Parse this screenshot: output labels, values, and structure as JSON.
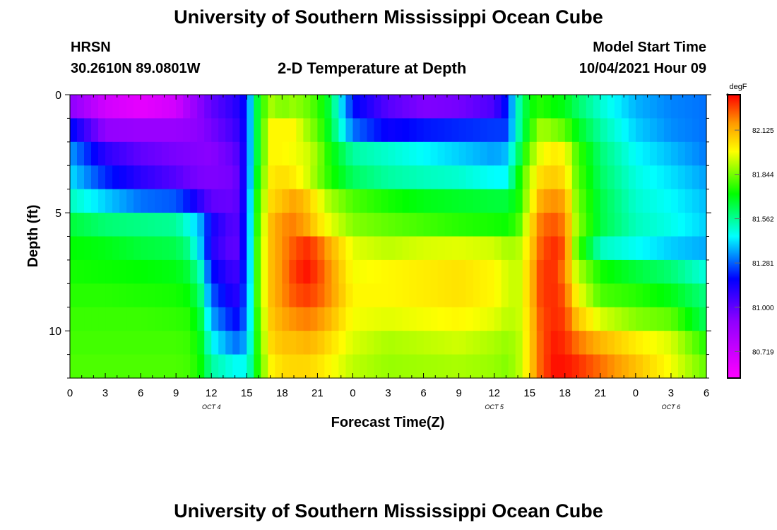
{
  "page": {
    "title_top": "University of Southern Mississippi Ocean Cube",
    "title_bottom": "University of Southern Mississippi Ocean Cube",
    "station": "HRSN",
    "location": "30.2610N  89.0801W",
    "plot_title": "2-D Temperature at Depth",
    "model_label": "Model Start Time",
    "model_time": "10/04/2021 Hour 09"
  },
  "chart_data": {
    "type": "heatmap",
    "title": "2-D Temperature at Depth",
    "xlabel": "Forecast Time(Z)",
    "ylabel": "Depth (ft)",
    "x_ticks": [
      "0",
      "3",
      "6",
      "9",
      "12",
      "15",
      "18",
      "21",
      "0",
      "3",
      "6",
      "9",
      "12",
      "15",
      "18",
      "21",
      "0",
      "3",
      "6"
    ],
    "x_range_hours": [
      0,
      54
    ],
    "date_labels": [
      {
        "label": "OCT 4",
        "hour": 12
      },
      {
        "label": "OCT 5",
        "hour": 36
      },
      {
        "label": "OCT 6",
        "hour": 51
      }
    ],
    "y_ticks": [
      0,
      5,
      10
    ],
    "y_range_ft": [
      0,
      12
    ],
    "colorbar": {
      "unit": "degF",
      "ticks": [
        "82.125",
        "81.844",
        "81.562",
        "81.281",
        "81.000",
        "80.719"
      ],
      "range": [
        80.55,
        82.35
      ]
    },
    "depth_levels_ft": [
      0.5,
      1.5,
      2.5,
      3.5,
      4.5,
      5.5,
      6.5,
      7.5,
      8.5,
      9.5,
      10.5,
      11.5
    ],
    "time_keys_hours": [
      0,
      3,
      6,
      9,
      10,
      11,
      12,
      14,
      15,
      15.5,
      16,
      17,
      18,
      19,
      20,
      21,
      22,
      24,
      27,
      30,
      33,
      36,
      37,
      38,
      39,
      40,
      41,
      42,
      43,
      45,
      48,
      51,
      54
    ],
    "values": [
      [
        80.92,
        80.7,
        80.63,
        80.7,
        80.82,
        80.92,
        81.0,
        81.1,
        81.2,
        81.5,
        81.7,
        81.9,
        81.85,
        81.88,
        81.84,
        81.78,
        81.66,
        81.2,
        81.02,
        80.94,
        80.96,
        81.04,
        81.2,
        81.52,
        81.72,
        81.76,
        81.72,
        81.7,
        81.62,
        81.5,
        81.37,
        81.32,
        81.3
      ],
      [
        81.2,
        80.9,
        80.88,
        80.88,
        80.9,
        80.92,
        80.96,
        81.06,
        81.2,
        81.5,
        81.7,
        82.0,
        82.0,
        82.0,
        81.9,
        81.82,
        81.68,
        81.3,
        81.16,
        81.2,
        81.22,
        81.24,
        81.24,
        81.52,
        81.75,
        81.9,
        81.86,
        81.82,
        81.7,
        81.55,
        81.4,
        81.33,
        81.3
      ],
      [
        81.35,
        81.1,
        81.0,
        80.95,
        80.94,
        80.93,
        80.92,
        81.0,
        81.2,
        81.5,
        81.7,
        82.0,
        82.0,
        81.98,
        81.95,
        81.88,
        81.74,
        81.55,
        81.5,
        81.45,
        81.4,
        81.35,
        81.38,
        81.6,
        81.85,
        81.98,
        82.02,
        82.0,
        81.8,
        81.6,
        81.45,
        81.38,
        81.31
      ],
      [
        81.42,
        81.22,
        81.1,
        81.02,
        80.98,
        80.95,
        80.94,
        80.96,
        81.22,
        81.5,
        81.75,
        82.02,
        82.05,
        82.02,
        81.96,
        81.86,
        81.76,
        81.62,
        81.55,
        81.52,
        81.5,
        81.45,
        81.45,
        81.7,
        81.92,
        82.06,
        82.08,
        82.05,
        81.82,
        81.62,
        81.48,
        81.42,
        81.35
      ],
      [
        81.52,
        81.4,
        81.3,
        81.27,
        81.2,
        81.1,
        81.0,
        80.98,
        81.22,
        81.55,
        81.8,
        82.05,
        82.1,
        82.15,
        82.1,
        82.0,
        81.9,
        81.8,
        81.74,
        81.7,
        81.68,
        81.66,
        81.66,
        81.72,
        81.95,
        82.15,
        82.18,
        82.15,
        81.85,
        81.65,
        81.5,
        81.45,
        81.38
      ],
      [
        81.66,
        81.6,
        81.58,
        81.56,
        81.48,
        81.38,
        81.15,
        81.0,
        81.24,
        81.55,
        81.82,
        82.1,
        82.18,
        82.2,
        82.15,
        82.05,
        81.97,
        81.86,
        81.82,
        81.79,
        81.76,
        81.74,
        81.73,
        81.78,
        82.02,
        82.22,
        82.25,
        82.2,
        81.88,
        81.65,
        81.52,
        81.47,
        81.4
      ],
      [
        81.72,
        81.7,
        81.66,
        81.64,
        81.58,
        81.42,
        81.12,
        80.98,
        81.25,
        81.55,
        81.85,
        82.1,
        82.18,
        82.25,
        82.3,
        82.25,
        82.14,
        81.96,
        81.92,
        81.95,
        81.96,
        81.94,
        81.9,
        81.9,
        82.05,
        82.25,
        82.3,
        82.25,
        81.82,
        81.52,
        81.46,
        81.4,
        81.36
      ],
      [
        81.74,
        81.73,
        81.72,
        81.7,
        81.66,
        81.55,
        81.2,
        81.05,
        81.26,
        81.55,
        81.85,
        82.1,
        82.18,
        82.28,
        82.33,
        82.28,
        82.18,
        81.98,
        82.0,
        82.02,
        82.04,
        82.0,
        81.95,
        81.92,
        82.08,
        82.28,
        82.3,
        82.2,
        81.92,
        81.74,
        81.66,
        81.6,
        81.48
      ],
      [
        81.76,
        81.76,
        81.75,
        81.74,
        81.72,
        81.62,
        81.28,
        81.1,
        81.28,
        81.56,
        81.85,
        82.1,
        82.18,
        82.25,
        82.28,
        82.25,
        82.18,
        82.0,
        82.0,
        82.02,
        82.04,
        82.0,
        81.95,
        81.92,
        82.08,
        82.28,
        82.3,
        82.25,
        82.0,
        81.8,
        81.76,
        81.7,
        81.58
      ],
      [
        81.78,
        81.78,
        81.78,
        81.77,
        81.76,
        81.68,
        81.36,
        81.18,
        81.3,
        81.56,
        81.82,
        82.08,
        82.14,
        82.18,
        82.2,
        82.18,
        82.12,
        81.98,
        81.96,
        81.98,
        82.0,
        81.96,
        81.92,
        81.92,
        82.06,
        82.26,
        82.3,
        82.28,
        82.1,
        81.95,
        81.86,
        81.82,
        81.62
      ],
      [
        81.79,
        81.79,
        81.79,
        81.79,
        81.78,
        81.72,
        81.46,
        81.3,
        81.36,
        81.58,
        81.8,
        82.05,
        82.1,
        82.1,
        82.12,
        82.1,
        82.05,
        81.95,
        81.9,
        81.92,
        81.94,
        81.9,
        81.88,
        81.9,
        82.06,
        82.25,
        82.32,
        82.3,
        82.22,
        82.12,
        82.02,
        81.95,
        81.75
      ],
      [
        81.8,
        81.8,
        81.8,
        81.8,
        81.79,
        81.74,
        81.55,
        81.46,
        81.46,
        81.6,
        81.78,
        82.0,
        82.05,
        82.06,
        82.06,
        82.04,
        82.0,
        81.92,
        81.88,
        81.89,
        81.9,
        81.88,
        81.86,
        81.9,
        82.06,
        82.25,
        82.33,
        82.33,
        82.3,
        82.22,
        82.1,
        81.98,
        81.82
      ]
    ]
  }
}
